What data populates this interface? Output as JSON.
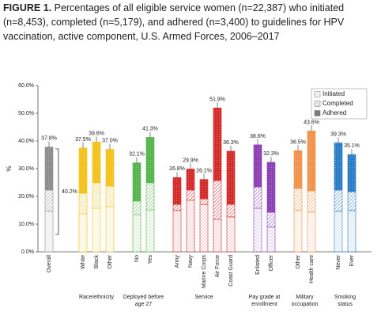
{
  "chart_data": {
    "type": "stacked_bar",
    "title_label": "FIGURE 1.",
    "title": [
      "Percentages of all eligible service women (n=22,387) who initiated",
      "(n=8,453), completed (n=5,179), and adhered (n=3,400) to guidelines for HPV",
      "vaccination, active component, U.S. Armed Forces, 2006–2017"
    ],
    "y_label": "%",
    "ylim": [
      0,
      60
    ],
    "yticks": [
      {
        "value": 0,
        "label": "0.0%"
      },
      {
        "value": 10,
        "label": "10.0%"
      },
      {
        "value": 20,
        "label": "20.0%"
      },
      {
        "value": 30,
        "label": "30.0%"
      },
      {
        "value": 40,
        "label": "40.0%"
      },
      {
        "value": 50,
        "label": "50.0%"
      },
      {
        "value": 60,
        "label": "60.0%"
      }
    ],
    "groups": [
      {
        "label": [],
        "color": "#8c8c8c",
        "categories": [
          "Overall"
        ]
      },
      {
        "label": [
          "Race/ethnicity"
        ],
        "color": "#f3c21b",
        "categories": [
          "White",
          "Black",
          "Other"
        ]
      },
      {
        "label": [
          "Deployed before",
          "age 27"
        ],
        "color": "#55b44b",
        "categories": [
          "No",
          "Yes"
        ]
      },
      {
        "label": [
          "Service"
        ],
        "color": "#d42a2a",
        "categories": [
          "Army",
          "Navy",
          "Marine Corps",
          "Air Force",
          "Coast Guard"
        ]
      },
      {
        "label": [
          "Pay grade at",
          "enrollment"
        ],
        "color": "#8a3fb3",
        "categories": [
          "Enlisted",
          "Officer"
        ]
      },
      {
        "label": [
          "Military",
          "occupation"
        ],
        "color": "#f0924a",
        "categories": [
          "Other",
          "Health care"
        ]
      },
      {
        "label": [
          "Smoking",
          "status"
        ],
        "color": "#2b7cc7",
        "categories": [
          "Never",
          "Ever"
        ]
      }
    ],
    "series": [
      {
        "name": "Initiated",
        "values": [
          14.6,
          13.7,
          15.7,
          16.3,
          13.4,
          15.1,
          14.9,
          18.6,
          17.1,
          11.7,
          12.6,
          15.7,
          8.9,
          14.9,
          14.3,
          14.6,
          14.9
        ]
      },
      {
        "name": "Completed",
        "values": [
          7.7,
          7.4,
          9.2,
          7.4,
          4.9,
          9.8,
          2.2,
          3.7,
          2.0,
          14.0,
          4.5,
          7.7,
          5.4,
          8.0,
          7.7,
          7.7,
          6.8
        ]
      },
      {
        "name": "Adhered",
        "values": [
          15.5,
          16.4,
          14.7,
          13.3,
          13.8,
          16.4,
          9.7,
          7.6,
          7.0,
          26.2,
          19.2,
          15.2,
          18.0,
          13.6,
          21.6,
          17.0,
          13.4
        ]
      }
    ],
    "total_labels": [
      "37.8%",
      "37.5%",
      "39.6%",
      "37.0%",
      "32.1%",
      "41.3%",
      "26.8%",
      "29.9%",
      "26.1%",
      "51.9%",
      "36.3%",
      "38.6%",
      "32.3%",
      "36.5%",
      "43.6%",
      "39.3%",
      "35.1%"
    ],
    "annotation": "40.2%",
    "legend_color": "#777777",
    "legend": "top-right"
  }
}
